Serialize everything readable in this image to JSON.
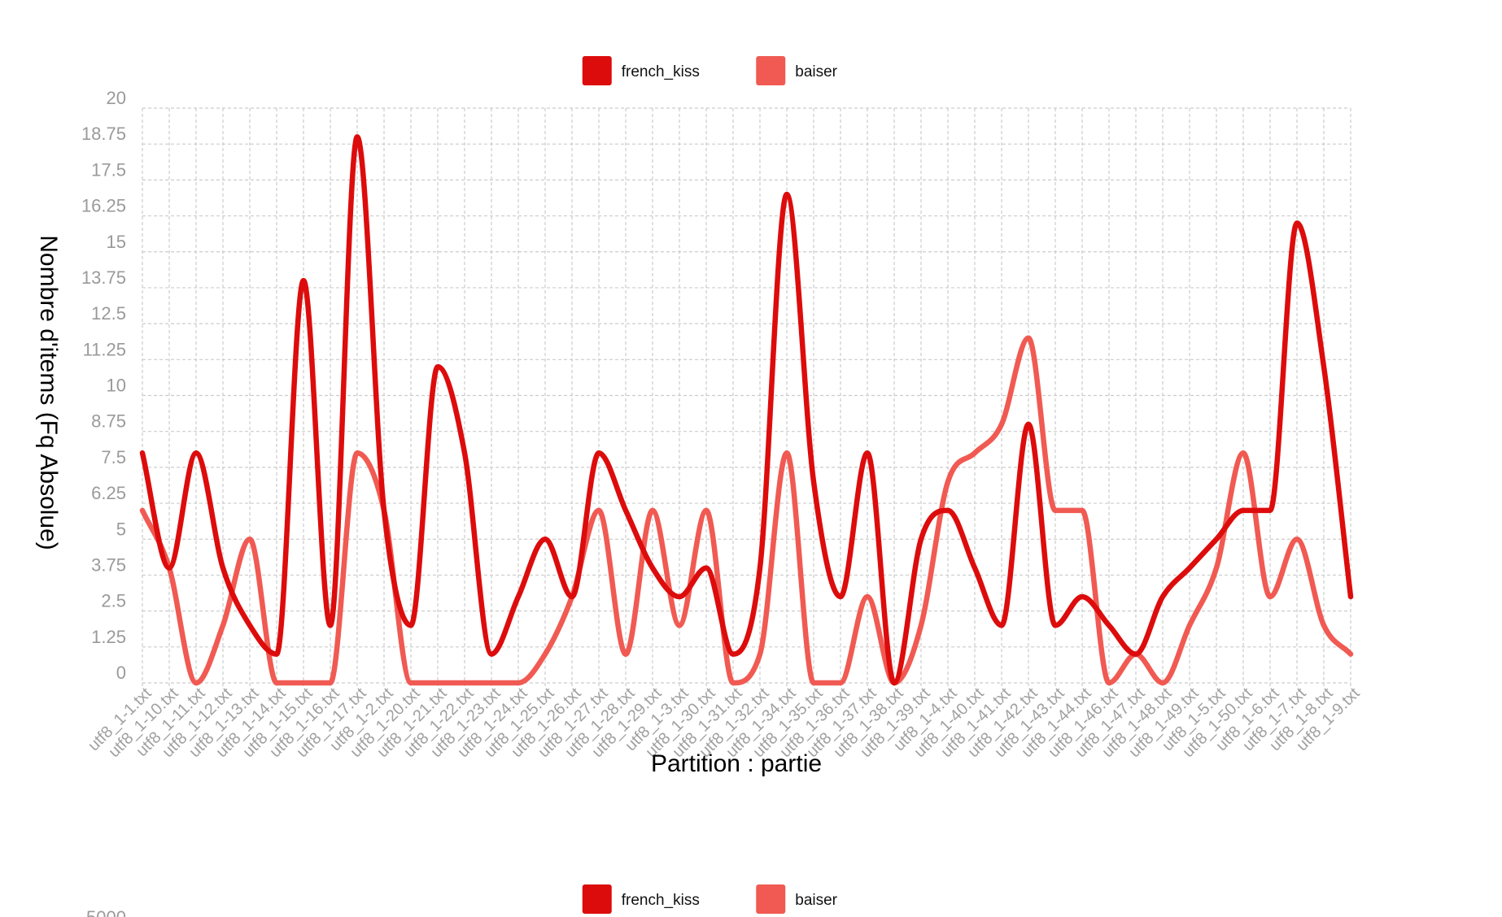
{
  "chart_data": [
    {
      "type": "line",
      "legend": {
        "position": "top"
      },
      "xlabel": "Partition : partie",
      "ylabel": "Nombre d'items (Fq Absolue)",
      "ylim": [
        0,
        20
      ],
      "yticks": [
        "0",
        "1.25",
        "2.5",
        "3.75",
        "5",
        "6.25",
        "7.5",
        "8.75",
        "10",
        "11.25",
        "12.5",
        "13.75",
        "15",
        "16.25",
        "17.5",
        "18.75",
        "20"
      ],
      "grid": true,
      "categories": [
        "utf8_1-1.txt",
        "utf8_1-10.txt",
        "utf8_1-11.txt",
        "utf8_1-12.txt",
        "utf8_1-13.txt",
        "utf8_1-14.txt",
        "utf8_1-15.txt",
        "utf8_1-16.txt",
        "utf8_1-17.txt",
        "utf8_1-2.txt",
        "utf8_1-20.txt",
        "utf8_1-21.txt",
        "utf8_1-22.txt",
        "utf8_1-23.txt",
        "utf8_1-24.txt",
        "utf8_1-25.txt",
        "utf8_1-26.txt",
        "utf8_1-27.txt",
        "utf8_1-28.txt",
        "utf8_1-29.txt",
        "utf8_1-3.txt",
        "utf8_1-30.txt",
        "utf8_1-31.txt",
        "utf8_1-32.txt",
        "utf8_1-34.txt",
        "utf8_1-35.txt",
        "utf8_1-36.txt",
        "utf8_1-37.txt",
        "utf8_1-38.txt",
        "utf8_1-39.txt",
        "utf8_1-4.txt",
        "utf8_1-40.txt",
        "utf8_1-41.txt",
        "utf8_1-42.txt",
        "utf8_1-43.txt",
        "utf8_1-44.txt",
        "utf8_1-46.txt",
        "utf8_1-47.txt",
        "utf8_1-48.txt",
        "utf8_1-49.txt",
        "utf8_1-5.txt",
        "utf8_1-50.txt",
        "utf8_1-6.txt",
        "utf8_1-7.txt",
        "utf8_1-8.txt",
        "utf8_1-9.txt"
      ],
      "series": [
        {
          "name": "french_kiss",
          "color": "#dd0c0c",
          "values": [
            8,
            4,
            8,
            4,
            2,
            1,
            14,
            2,
            19,
            6,
            2,
            11,
            8,
            1,
            3,
            5,
            3,
            8,
            6,
            4,
            3,
            4,
            1,
            4,
            17,
            7,
            3,
            8,
            0,
            5,
            6,
            4,
            2,
            9,
            2,
            3,
            2,
            1,
            3,
            4,
            5,
            6,
            6,
            16,
            11,
            3
          ]
        },
        {
          "name": "baiser",
          "color": "#f05a52",
          "values": [
            6,
            4,
            0,
            2,
            5,
            0,
            0,
            0,
            8,
            6,
            0,
            0,
            0,
            0,
            0,
            1,
            3,
            6,
            1,
            6,
            2,
            6,
            0,
            1,
            8,
            0,
            0,
            3,
            0,
            2,
            7,
            8,
            9,
            12,
            6,
            6,
            0,
            1,
            0,
            2,
            4,
            8,
            3,
            5,
            2,
            1
          ]
        }
      ]
    },
    {
      "type": "line",
      "legend": {
        "position": "top"
      },
      "series": [
        {
          "name": "french_kiss",
          "color": "#dd0c0c"
        },
        {
          "name": "baiser",
          "color": "#f05a52"
        }
      ],
      "yticks": [
        "5000"
      ]
    }
  ]
}
